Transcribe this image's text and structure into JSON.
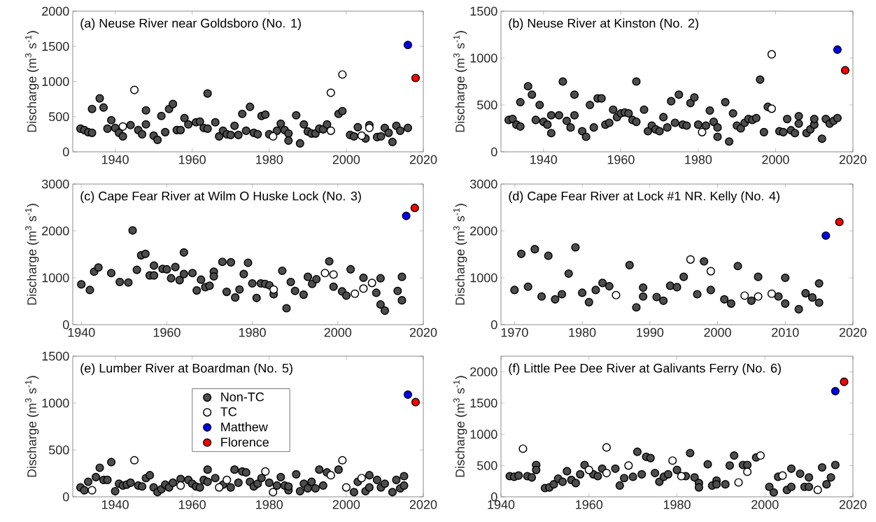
{
  "chart_data": [
    {
      "type": "scatter",
      "title": "(a) Neuse River near Goldsboro (No. 1)",
      "ylabel": "Discharge (m$^{3}$ s$^{-1}$)",
      "xlim": [
        1929,
        2020
      ],
      "xticks": [
        1940,
        1960,
        1980,
        2000,
        2020
      ],
      "ylim": [
        0,
        2000
      ],
      "yticks": [
        0,
        500,
        1000,
        1500,
        2000
      ],
      "marker": "circle",
      "series": [
        {
          "color": "#4d4d4d",
          "x": [
            1931,
            1932,
            1933,
            1934,
            1934,
            1936,
            1937,
            1938,
            1939,
            1940,
            1941,
            1942,
            1944,
            1946,
            1947,
            1948,
            1948,
            1950,
            1951,
            1952,
            1953,
            1954,
            1955,
            1956,
            1957,
            1958,
            1959,
            1961,
            1962,
            1963,
            1964,
            1964,
            1966,
            1967,
            1968,
            1969,
            1970,
            1971,
            1972,
            1973,
            1974,
            1975,
            1976,
            1977,
            1978,
            1979,
            1980,
            1982,
            1983,
            1984,
            1985,
            1985,
            1987,
            1988,
            1989,
            1990,
            1991,
            1992,
            1993,
            1994,
            1995,
            1998,
            1999,
            2001,
            2002,
            2003,
            2005,
            2006,
            2008,
            2009,
            2010,
            2011,
            2012,
            2013,
            2014,
            2016
          ],
          "values": [
            330,
            310,
            280,
            270,
            610,
            760,
            630,
            330,
            450,
            340,
            270,
            220,
            380,
            310,
            250,
            590,
            390,
            230,
            170,
            510,
            280,
            610,
            680,
            310,
            310,
            480,
            390,
            420,
            430,
            340,
            830,
            330,
            420,
            220,
            300,
            250,
            240,
            370,
            240,
            540,
            300,
            640,
            270,
            250,
            510,
            530,
            250,
            300,
            400,
            310,
            260,
            160,
            520,
            120,
            390,
            290,
            260,
            260,
            330,
            320,
            390,
            540,
            580,
            240,
            220,
            350,
            190,
            380,
            210,
            220,
            340,
            270,
            140,
            370,
            300,
            340
          ]
        },
        {
          "color": "#ffffff",
          "x": [
            1942,
            1945,
            1981,
            1996,
            1996,
            1999,
            2004,
            2006
          ],
          "values": [
            360,
            880,
            220,
            840,
            300,
            1100,
            230,
            340
          ]
        },
        {
          "color": "#0000ff",
          "x": [
            2016
          ],
          "values": [
            1520
          ]
        },
        {
          "color": "#ff0000",
          "x": [
            2018
          ],
          "values": [
            1050
          ]
        }
      ]
    },
    {
      "type": "scatter",
      "title": "(b) Neuse River at Kinston (No. 2)",
      "ylabel": "Discharge (m$^{3}$ s$^{-1}$)",
      "xlim": [
        1929,
        2020
      ],
      "xticks": [
        1940,
        1960,
        1980,
        2000,
        2020
      ],
      "ylim": [
        0,
        1500
      ],
      "yticks": [
        0,
        500,
        1000,
        1500
      ],
      "marker": "circle",
      "series": [
        {
          "color": "#4d4d4d",
          "x": [
            1931,
            1932,
            1933,
            1934,
            1934,
            1936,
            1937,
            1938,
            1939,
            1940,
            1941,
            1942,
            1942,
            1944,
            1945,
            1946,
            1947,
            1948,
            1948,
            1950,
            1951,
            1952,
            1953,
            1954,
            1955,
            1956,
            1957,
            1958,
            1959,
            1960,
            1961,
            1962,
            1963,
            1964,
            1964,
            1966,
            1967,
            1968,
            1969,
            1970,
            1971,
            1972,
            1973,
            1974,
            1975,
            1976,
            1977,
            1978,
            1979,
            1980,
            1982,
            1983,
            1984,
            1985,
            1985,
            1987,
            1988,
            1989,
            1990,
            1991,
            1992,
            1993,
            1994,
            1995,
            1996,
            1997,
            1998,
            2001,
            2002,
            2003,
            2004,
            2005,
            2006,
            2006,
            2008,
            2009,
            2010,
            2010,
            2012,
            2013,
            2014,
            2015,
            2016
          ],
          "values": [
            340,
            350,
            290,
            270,
            530,
            700,
            610,
            340,
            500,
            320,
            290,
            200,
            390,
            390,
            750,
            330,
            260,
            610,
            390,
            220,
            160,
            500,
            260,
            570,
            570,
            290,
            310,
            450,
            370,
            410,
            420,
            410,
            340,
            320,
            750,
            450,
            220,
            280,
            240,
            220,
            370,
            260,
            540,
            310,
            610,
            290,
            280,
            520,
            580,
            290,
            280,
            440,
            320,
            260,
            160,
            530,
            110,
            410,
            280,
            250,
            310,
            350,
            340,
            360,
            770,
            210,
            480,
            220,
            210,
            350,
            230,
            200,
            380,
            300,
            200,
            240,
            290,
            350,
            140,
            350,
            300,
            330,
            360
          ]
        },
        {
          "color": "#ffffff",
          "x": [
            1981,
            1999,
            1999
          ],
          "values": [
            210,
            1040,
            460
          ]
        },
        {
          "color": "#0000ff",
          "x": [
            2016
          ],
          "values": [
            1090
          ]
        },
        {
          "color": "#ff0000",
          "x": [
            2018
          ],
          "values": [
            870
          ]
        }
      ]
    },
    {
      "type": "scatter",
      "title": "(c) Cape Fear River at Wilm O Huske Lock  (No. 3)",
      "ylabel": "Discharge (m$^{3}$ s$^{-1}$)",
      "xlim": [
        1938,
        2020
      ],
      "xticks": [
        1940,
        1960,
        1980,
        2000,
        2020
      ],
      "ylim": [
        0,
        3000
      ],
      "yticks": [
        0,
        1000,
        2000,
        3000
      ],
      "marker": "circle",
      "series": [
        {
          "color": "#4d4d4d",
          "x": [
            1940,
            1942,
            1943,
            1944,
            1947,
            1949,
            1951,
            1952,
            1953,
            1954,
            1955,
            1956,
            1957,
            1957,
            1959,
            1960,
            1961,
            1962,
            1963,
            1964,
            1964,
            1966,
            1967,
            1968,
            1969,
            1970,
            1971,
            1971,
            1973,
            1974,
            1975,
            1976,
            1977,
            1978,
            1979,
            1980,
            1981,
            1982,
            1983,
            1984,
            1985,
            1987,
            1988,
            1989,
            1990,
            1992,
            1993,
            1994,
            1995,
            1998,
            1999,
            2001,
            2002,
            2003,
            2006,
            2009,
            2010,
            2010,
            2011,
            2014,
            2015,
            2015
          ],
          "values": [
            860,
            740,
            1130,
            1220,
            1100,
            910,
            900,
            2010,
            1170,
            1480,
            1510,
            1050,
            1050,
            1260,
            1190,
            1180,
            990,
            1230,
            950,
            1540,
            1080,
            1100,
            730,
            960,
            800,
            830,
            1130,
            1030,
            1340,
            700,
            1330,
            580,
            750,
            1080,
            1320,
            880,
            570,
            880,
            870,
            840,
            650,
            1150,
            350,
            910,
            720,
            640,
            1020,
            870,
            970,
            1350,
            810,
            710,
            620,
            1180,
            1000,
            680,
            990,
            430,
            300,
            720,
            1020,
            520
          ]
        },
        {
          "color": "#ffffff",
          "x": [
            1985,
            1997,
            1999,
            2004,
            2006,
            2008
          ],
          "values": [
            750,
            1100,
            1070,
            660,
            770,
            890
          ]
        },
        {
          "color": "#0000ff",
          "x": [
            2016
          ],
          "values": [
            2320
          ]
        },
        {
          "color": "#ff0000",
          "x": [
            2018
          ],
          "values": [
            2490
          ]
        }
      ]
    },
    {
      "type": "scatter",
      "title": "(d) Cape Fear River at Lock #1 NR. Kelly (No. 4)",
      "ylabel": "Discharge (m$^{3}$ s$^{-1}$)",
      "xlim": [
        1968,
        2020
      ],
      "xticks": [
        1970,
        1980,
        1990,
        2000,
        2010,
        2020
      ],
      "ylim": [
        0,
        3000
      ],
      "yticks": [
        0,
        1000,
        2000,
        3000
      ],
      "marker": "circle",
      "series": [
        {
          "color": "#4d4d4d",
          "x": [
            1970,
            1971,
            1972,
            1973,
            1974,
            1975,
            1976,
            1977,
            1978,
            1979,
            1980,
            1981,
            1982,
            1983,
            1984,
            1987,
            1988,
            1989,
            1989,
            1991,
            1992,
            1993,
            1994,
            1995,
            1997,
            1998,
            1999,
            2001,
            2002,
            2003,
            2005,
            2006,
            2009,
            2010,
            2010,
            2012,
            2013,
            2014,
            2015,
            2015
          ],
          "values": [
            740,
            1510,
            810,
            1610,
            600,
            1470,
            540,
            650,
            1090,
            1650,
            680,
            480,
            740,
            890,
            820,
            1270,
            370,
            790,
            600,
            590,
            510,
            830,
            800,
            1020,
            650,
            1350,
            740,
            540,
            450,
            1250,
            510,
            1020,
            600,
            1000,
            450,
            330,
            670,
            580,
            880,
            470
          ]
        },
        {
          "color": "#ffffff",
          "x": [
            1985,
            1996,
            1999,
            2004,
            2006,
            2008
          ],
          "values": [
            630,
            1390,
            1140,
            620,
            600,
            660
          ]
        },
        {
          "color": "#0000ff",
          "x": [
            2016
          ],
          "values": [
            1900
          ]
        },
        {
          "color": "#ff0000",
          "x": [
            2018
          ],
          "values": [
            2190
          ]
        }
      ]
    },
    {
      "type": "scatter",
      "title": "(e) Lumber River at Boardman (No. 5)",
      "ylabel": "Discharge (m$^{3}$ s$^{-1}$)",
      "xlim": [
        1929,
        2020
      ],
      "xticks": [
        1940,
        1960,
        1980,
        2000,
        2020
      ],
      "ylim": [
        0,
        1500
      ],
      "yticks": [
        0,
        500,
        1000,
        1500
      ],
      "marker": "circle",
      "legend": "top",
      "series": [
        {
          "name": "Non-TC",
          "color": "#4d4d4d",
          "x": [
            1931,
            1932,
            1933,
            1935,
            1936,
            1937,
            1938,
            1939,
            1940,
            1941,
            1942,
            1943,
            1944,
            1946,
            1947,
            1948,
            1949,
            1950,
            1951,
            1952,
            1953,
            1954,
            1955,
            1957,
            1959,
            1960,
            1961,
            1962,
            1963,
            1964,
            1964,
            1966,
            1968,
            1970,
            1971,
            1972,
            1973,
            1974,
            1975,
            1976,
            1977,
            1978,
            1980,
            1982,
            1983,
            1984,
            1985,
            1985,
            1987,
            1988,
            1989,
            1990,
            1991,
            1992,
            1993,
            1994,
            1995,
            1998,
            2002,
            2003,
            2005,
            2006,
            2006,
            2008,
            2009,
            2010,
            2012,
            2013,
            2014,
            2015,
            2015
          ],
          "values": [
            100,
            70,
            160,
            210,
            310,
            180,
            180,
            370,
            60,
            140,
            120,
            130,
            150,
            120,
            110,
            200,
            230,
            100,
            50,
            80,
            130,
            100,
            150,
            190,
            180,
            140,
            110,
            100,
            180,
            290,
            160,
            200,
            130,
            100,
            290,
            150,
            270,
            260,
            160,
            110,
            140,
            200,
            150,
            120,
            210,
            120,
            70,
            110,
            240,
            60,
            140,
            90,
            160,
            90,
            290,
            120,
            260,
            290,
            50,
            160,
            60,
            100,
            230,
            180,
            100,
            140,
            50,
            180,
            90,
            220,
            120
          ]
        },
        {
          "name": "TC",
          "color": "#ffffff",
          "x": [
            1934,
            1945,
            1957,
            1967,
            1969,
            1979,
            1981,
            1996,
            1999,
            2000,
            2004
          ],
          "values": [
            70,
            390,
            120,
            100,
            180,
            270,
            50,
            230,
            390,
            100,
            200
          ]
        },
        {
          "name": "Matthew",
          "color": "#0000ff",
          "x": [
            2016
          ],
          "values": [
            1090
          ]
        },
        {
          "name": "Florence",
          "color": "#ff0000",
          "x": [
            2018
          ],
          "values": [
            1010
          ]
        }
      ]
    },
    {
      "type": "scatter",
      "title": "(f) Little Pee Dee River at Galivants Ferry (No. 6)",
      "ylabel": "Discharge (m$^{3}$ s$^{-1}$)",
      "xlim": [
        1940,
        2020
      ],
      "xticks": [
        1940,
        1960,
        1980,
        2000,
        2020
      ],
      "ylim": [
        0,
        2250
      ],
      "yticks": [
        0,
        500,
        1000,
        1500,
        2000
      ],
      "marker": "circle",
      "series": [
        {
          "color": "#4d4d4d",
          "x": [
            1942,
            1943,
            1944,
            1946,
            1947,
            1948,
            1948,
            1950,
            1951,
            1952,
            1953,
            1954,
            1955,
            1956,
            1957,
            1958,
            1959,
            1961,
            1962,
            1963,
            1966,
            1967,
            1968,
            1970,
            1971,
            1972,
            1973,
            1974,
            1975,
            1976,
            1977,
            1978,
            1980,
            1982,
            1983,
            1984,
            1985,
            1985,
            1987,
            1988,
            1989,
            1989,
            1991,
            1992,
            1993,
            1995,
            1996,
            1998,
            2001,
            2002,
            2003,
            2005,
            2006,
            2006,
            2008,
            2009,
            2010,
            2010,
            2013,
            2014,
            2015,
            2016
          ],
          "values": [
            330,
            320,
            340,
            330,
            310,
            510,
            430,
            140,
            150,
            200,
            290,
            240,
            410,
            270,
            220,
            360,
            510,
            360,
            330,
            450,
            450,
            180,
            300,
            320,
            720,
            360,
            640,
            620,
            380,
            240,
            320,
            360,
            430,
            330,
            700,
            310,
            220,
            150,
            520,
            180,
            260,
            200,
            200,
            500,
            660,
            510,
            510,
            630,
            160,
            70,
            320,
            110,
            160,
            450,
            370,
            160,
            310,
            160,
            470,
            200,
            310,
            510
          ]
        },
        {
          "color": "#ffffff",
          "x": [
            1945,
            1960,
            1964,
            1964,
            1969,
            1979,
            1981,
            1994,
            1996,
            1999,
            2004,
            2012
          ],
          "values": [
            770,
            430,
            790,
            380,
            500,
            580,
            330,
            230,
            400,
            660,
            340,
            110
          ]
        },
        {
          "color": "#0000ff",
          "x": [
            2016
          ],
          "values": [
            1690
          ]
        },
        {
          "color": "#ff0000",
          "x": [
            2018
          ],
          "values": [
            1840
          ]
        }
      ]
    }
  ]
}
